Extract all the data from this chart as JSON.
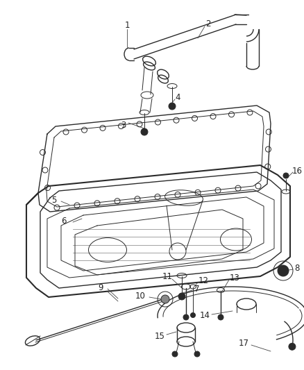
{
  "background_color": "#ffffff",
  "fig_width": 4.38,
  "fig_height": 5.33,
  "dpi": 100,
  "line_color": "#2a2a2a",
  "label_color": "#222222",
  "label_fontsize": 8.5
}
